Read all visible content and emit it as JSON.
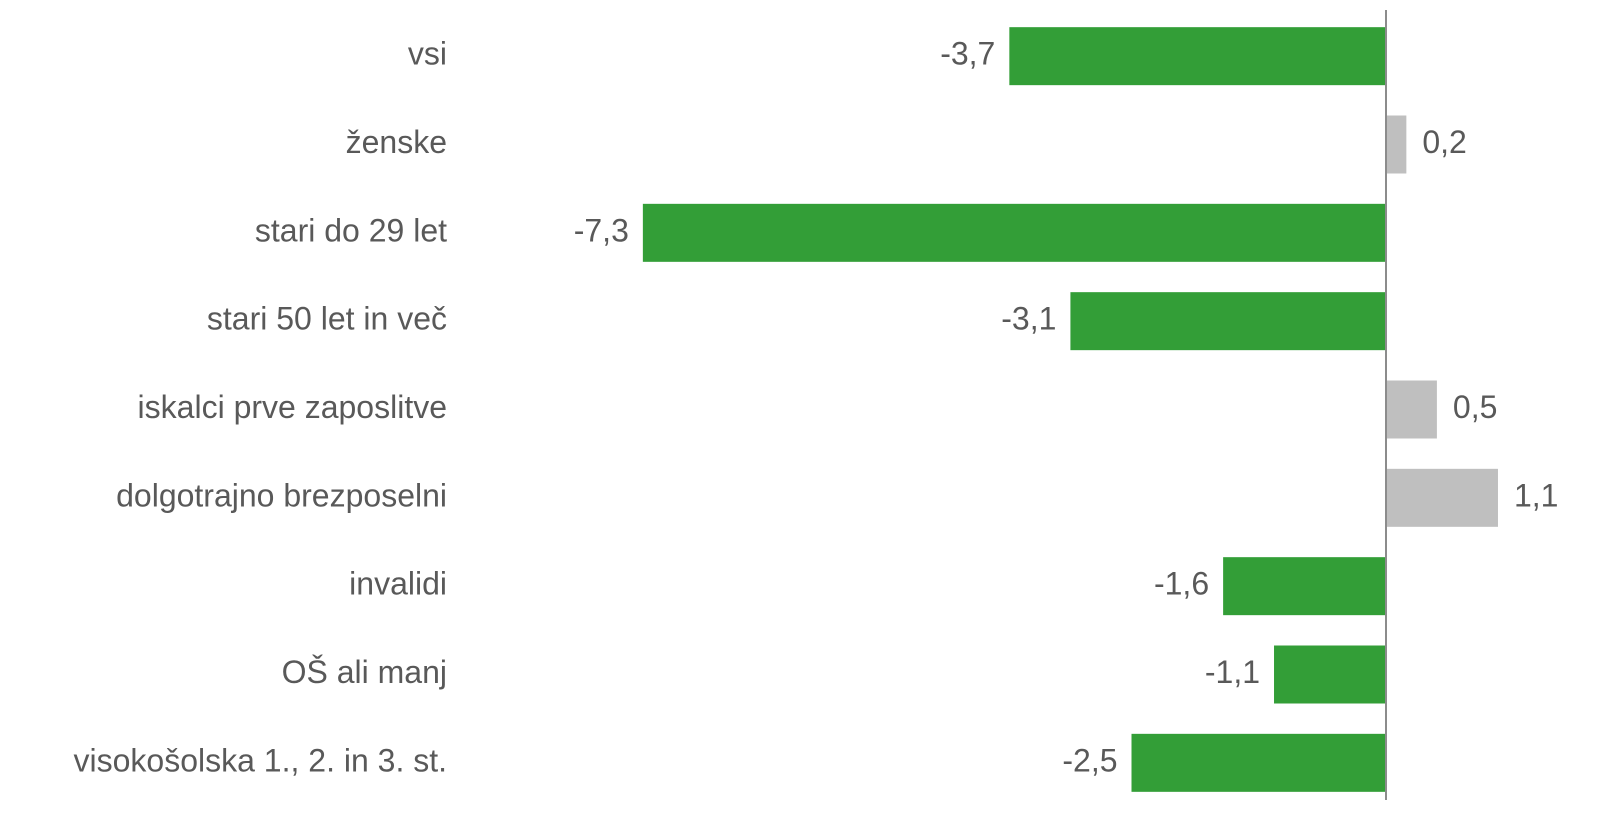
{
  "chart_data": {
    "type": "barh",
    "categories": [
      "vsi",
      "ženske",
      "stari do 29 let",
      "stari 50 let in več",
      "iskalci prve zaposlitve",
      "dolgotrajno brezposelni",
      "invalidi",
      "OŠ ali manj",
      "visokošolska 1., 2. in 3. st."
    ],
    "values": [
      -3.7,
      0.2,
      -7.3,
      -3.1,
      0.5,
      1.1,
      -1.6,
      -1.1,
      -2.5
    ],
    "value_labels": [
      "-3,7",
      "0,2",
      "-7,3",
      "-3,1",
      "0,5",
      "1,1",
      "-1,6",
      "-1,1",
      "-2,5"
    ],
    "color_negative": "#339e37",
    "color_positive": "#bfbfbf",
    "xlim": [
      -8,
      1.5
    ]
  }
}
